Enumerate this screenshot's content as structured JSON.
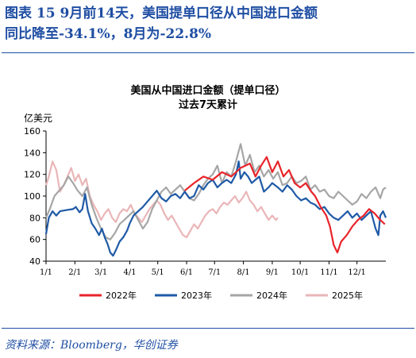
{
  "figure": {
    "title_line1": "图表 15   9月前14天，美国提单口径从中国进口金额",
    "title_line2": "同比降至-34.1%，8月为-22.8%",
    "source": "资料来源：Bloomberg，华创证券"
  },
  "colors": {
    "2022": "#e8242a",
    "2023": "#1f5aa6",
    "2024": "#a6a6a6",
    "2025": "#eab6b8",
    "frame": "#1f4ea3"
  },
  "chart_data": {
    "type": "line",
    "title": "美国从中国进口金额（提单口径）",
    "subtitle": "过去7天累计",
    "ylabel": "亿美元",
    "ylim": [
      40,
      160
    ],
    "yticks": [
      40,
      60,
      80,
      100,
      120,
      140,
      160
    ],
    "xlim": [
      1,
      366
    ],
    "xticks": [
      {
        "label": "1/1",
        "day": 1
      },
      {
        "label": "2/1",
        "day": 32
      },
      {
        "label": "3/1",
        "day": 60
      },
      {
        "label": "4/1",
        "day": 91
      },
      {
        "label": "5/1",
        "day": 121
      },
      {
        "label": "6/1",
        "day": 152
      },
      {
        "label": "7/1",
        "day": 182
      },
      {
        "label": "8/1",
        "day": 213
      },
      {
        "label": "9/1",
        "day": 244
      },
      {
        "label": "10/1",
        "day": 274
      },
      {
        "label": "11/1",
        "day": 305
      },
      {
        "label": "12/1",
        "day": 335
      }
    ],
    "legend_position": "bottom",
    "series": [
      {
        "name": "2022年",
        "color": "#e8242a",
        "points": [
          [
            150,
            105
          ],
          [
            160,
            112
          ],
          [
            170,
            118
          ],
          [
            180,
            115
          ],
          [
            190,
            122
          ],
          [
            200,
            118
          ],
          [
            210,
            126
          ],
          [
            220,
            130
          ],
          [
            226,
            118
          ],
          [
            232,
            128
          ],
          [
            238,
            136
          ],
          [
            244,
            122
          ],
          [
            250,
            132
          ],
          [
            256,
            118
          ],
          [
            262,
            124
          ],
          [
            268,
            112
          ],
          [
            274,
            108
          ],
          [
            280,
            112
          ],
          [
            286,
            104
          ],
          [
            290,
            100
          ],
          [
            296,
            90
          ],
          [
            302,
            82
          ],
          [
            306,
            72
          ],
          [
            310,
            55
          ],
          [
            314,
            48
          ],
          [
            318,
            58
          ],
          [
            324,
            64
          ],
          [
            330,
            72
          ],
          [
            336,
            78
          ],
          [
            342,
            82
          ],
          [
            348,
            88
          ],
          [
            354,
            84
          ],
          [
            360,
            78
          ],
          [
            365,
            74
          ]
        ]
      },
      {
        "name": "2023年",
        "color": "#1f5aa6",
        "points": [
          [
            1,
            65
          ],
          [
            4,
            80
          ],
          [
            8,
            86
          ],
          [
            12,
            82
          ],
          [
            16,
            86
          ],
          [
            22,
            87
          ],
          [
            30,
            88
          ],
          [
            33,
            90
          ],
          [
            37,
            85
          ],
          [
            40,
            88
          ],
          [
            43,
            102
          ],
          [
            46,
            86
          ],
          [
            50,
            75
          ],
          [
            54,
            70
          ],
          [
            58,
            64
          ],
          [
            61,
            70
          ],
          [
            64,
            62
          ],
          [
            67,
            56
          ],
          [
            70,
            48
          ],
          [
            73,
            45
          ],
          [
            76,
            50
          ],
          [
            80,
            58
          ],
          [
            84,
            62
          ],
          [
            88,
            68
          ],
          [
            91,
            75
          ],
          [
            95,
            82
          ],
          [
            100,
            86
          ],
          [
            105,
            90
          ],
          [
            110,
            95
          ],
          [
            115,
            100
          ],
          [
            120,
            105
          ],
          [
            125,
            98
          ],
          [
            130,
            95
          ],
          [
            135,
            100
          ],
          [
            140,
            102
          ],
          [
            145,
            98
          ],
          [
            150,
            104
          ],
          [
            155,
            98
          ],
          [
            160,
            100
          ],
          [
            165,
            110
          ],
          [
            170,
            106
          ],
          [
            175,
            112
          ],
          [
            180,
            115
          ],
          [
            185,
            108
          ],
          [
            190,
            112
          ],
          [
            195,
            115
          ],
          [
            200,
            112
          ],
          [
            205,
            120
          ],
          [
            208,
            132
          ],
          [
            210,
            116
          ],
          [
            214,
            122
          ],
          [
            218,
            118
          ],
          [
            222,
            112
          ],
          [
            226,
            115
          ],
          [
            230,
            118
          ],
          [
            235,
            104
          ],
          [
            240,
            108
          ],
          [
            244,
            112
          ],
          [
            250,
            108
          ],
          [
            255,
            104
          ],
          [
            260,
            110
          ],
          [
            265,
            106
          ],
          [
            270,
            100
          ],
          [
            275,
            96
          ],
          [
            280,
            98
          ],
          [
            285,
            94
          ],
          [
            290,
            92
          ],
          [
            295,
            88
          ],
          [
            300,
            90
          ],
          [
            305,
            84
          ],
          [
            310,
            80
          ],
          [
            315,
            78
          ],
          [
            320,
            82
          ],
          [
            325,
            86
          ],
          [
            330,
            80
          ],
          [
            335,
            84
          ],
          [
            340,
            78
          ],
          [
            345,
            82
          ],
          [
            350,
            86
          ],
          [
            355,
            70
          ],
          [
            358,
            64
          ],
          [
            360,
            82
          ],
          [
            363,
            86
          ],
          [
            366,
            80
          ]
        ]
      },
      {
        "name": "2024年",
        "color": "#a6a6a6",
        "points": [
          [
            1,
            80
          ],
          [
            5,
            88
          ],
          [
            10,
            100
          ],
          [
            15,
            105
          ],
          [
            20,
            110
          ],
          [
            25,
            118
          ],
          [
            30,
            112
          ],
          [
            35,
            105
          ],
          [
            40,
            100
          ],
          [
            45,
            108
          ],
          [
            50,
            92
          ],
          [
            55,
            80
          ],
          [
            60,
            70
          ],
          [
            65,
            62
          ],
          [
            70,
            60
          ],
          [
            75,
            66
          ],
          [
            80,
            74
          ],
          [
            85,
            78
          ],
          [
            90,
            82
          ],
          [
            95,
            86
          ],
          [
            100,
            78
          ],
          [
            105,
            70
          ],
          [
            110,
            76
          ],
          [
            115,
            88
          ],
          [
            120,
            96
          ],
          [
            125,
            104
          ],
          [
            130,
            108
          ],
          [
            135,
            102
          ],
          [
            140,
            106
          ],
          [
            145,
            110
          ],
          [
            150,
            104
          ],
          [
            155,
            98
          ],
          [
            160,
            96
          ],
          [
            165,
            102
          ],
          [
            170,
            110
          ],
          [
            175,
            116
          ],
          [
            180,
            120
          ],
          [
            185,
            128
          ],
          [
            190,
            112
          ],
          [
            195,
            122
          ],
          [
            200,
            118
          ],
          [
            205,
            132
          ],
          [
            210,
            148
          ],
          [
            215,
            128
          ],
          [
            220,
            138
          ],
          [
            225,
            122
          ],
          [
            230,
            128
          ],
          [
            235,
            118
          ],
          [
            240,
            124
          ],
          [
            245,
            116
          ],
          [
            250,
            122
          ],
          [
            255,
            110
          ],
          [
            260,
            112
          ],
          [
            265,
            118
          ],
          [
            270,
            112
          ],
          [
            275,
            114
          ],
          [
            280,
            118
          ],
          [
            285,
            106
          ],
          [
            290,
            110
          ],
          [
            295,
            104
          ],
          [
            300,
            106
          ],
          [
            305,
            100
          ],
          [
            310,
            98
          ],
          [
            315,
            104
          ],
          [
            320,
            100
          ],
          [
            325,
            96
          ],
          [
            330,
            92
          ],
          [
            335,
            95
          ],
          [
            340,
            102
          ],
          [
            345,
            98
          ],
          [
            350,
            104
          ],
          [
            355,
            108
          ],
          [
            360,
            98
          ],
          [
            363,
            106
          ],
          [
            366,
            108
          ]
        ]
      },
      {
        "name": "2025年",
        "color": "#eab6b8",
        "points": [
          [
            1,
            110
          ],
          [
            4,
            118
          ],
          [
            8,
            132
          ],
          [
            12,
            124
          ],
          [
            16,
            104
          ],
          [
            20,
            110
          ],
          [
            24,
            118
          ],
          [
            28,
            126
          ],
          [
            32,
            114
          ],
          [
            36,
            120
          ],
          [
            40,
            110
          ],
          [
            44,
            116
          ],
          [
            48,
            100
          ],
          [
            52,
            92
          ],
          [
            56,
            86
          ],
          [
            60,
            78
          ],
          [
            64,
            84
          ],
          [
            68,
            88
          ],
          [
            72,
            80
          ],
          [
            76,
            76
          ],
          [
            80,
            84
          ],
          [
            84,
            88
          ],
          [
            88,
            86
          ],
          [
            92,
            92
          ],
          [
            96,
            84
          ],
          [
            100,
            80
          ],
          [
            104,
            76
          ],
          [
            108,
            82
          ],
          [
            112,
            88
          ],
          [
            116,
            92
          ],
          [
            120,
            96
          ],
          [
            124,
            92
          ],
          [
            128,
            84
          ],
          [
            132,
            78
          ],
          [
            136,
            82
          ],
          [
            140,
            76
          ],
          [
            144,
            70
          ],
          [
            148,
            64
          ],
          [
            152,
            62
          ],
          [
            156,
            68
          ],
          [
            160,
            74
          ],
          [
            164,
            70
          ],
          [
            168,
            76
          ],
          [
            172,
            82
          ],
          [
            176,
            86
          ],
          [
            180,
            88
          ],
          [
            184,
            84
          ],
          [
            188,
            90
          ],
          [
            192,
            94
          ],
          [
            196,
            92
          ],
          [
            200,
            96
          ],
          [
            204,
            100
          ],
          [
            208,
            94
          ],
          [
            212,
            98
          ],
          [
            216,
            104
          ],
          [
            220,
            96
          ],
          [
            224,
            92
          ],
          [
            228,
            86
          ],
          [
            232,
            90
          ],
          [
            236,
            84
          ],
          [
            240,
            78
          ],
          [
            244,
            82
          ],
          [
            248,
            78
          ],
          [
            250,
            80
          ]
        ]
      }
    ]
  }
}
